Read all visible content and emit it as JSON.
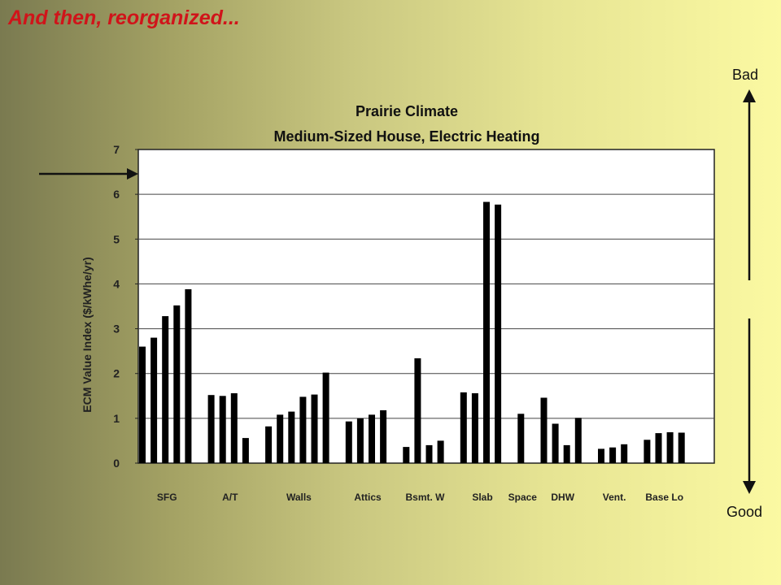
{
  "slide": {
    "title": "And then, reorganized...",
    "bad_label": "Bad",
    "good_label": "Good"
  },
  "colors": {
    "title": "#d0141a",
    "bars": "#000000",
    "plot_background": "#ffffff"
  },
  "chart_data": {
    "type": "bar",
    "title": "Prairie Climate",
    "subtitle": "Medium-Sized House, Electric Heating",
    "xlabel": "",
    "ylabel": "ECM Value Index ($/kWhe/yr)",
    "ylim": [
      0,
      7
    ],
    "yticks": [
      0,
      1,
      2,
      3,
      4,
      5,
      6,
      7
    ],
    "grid": true,
    "legend": "none",
    "categories": [
      "SFG",
      "A/T",
      "Walls",
      "Attics",
      "Bsmt. W",
      "Slab",
      "Space",
      "DHW",
      "Vent.",
      "Base Lo"
    ],
    "groups": [
      {
        "category": "SFG",
        "values": [
          2.6,
          2.8,
          3.28,
          3.52,
          3.88
        ]
      },
      {
        "category": "A/T",
        "values": [
          1.52,
          1.5,
          1.56,
          0.56
        ]
      },
      {
        "category": "Walls",
        "values": [
          0.82,
          1.08,
          1.15,
          1.48,
          1.53,
          2.02
        ]
      },
      {
        "category": "Attics",
        "values": [
          0.93,
          1.0,
          1.08,
          1.18
        ]
      },
      {
        "category": "Bsmt. W",
        "values": [
          0.36,
          2.34,
          0.4,
          0.5
        ]
      },
      {
        "category": "Slab",
        "values": [
          1.58,
          1.56,
          5.83,
          5.77
        ]
      },
      {
        "category": "Space",
        "values": [
          1.1
        ]
      },
      {
        "category": "DHW",
        "values": [
          1.46,
          0.88,
          0.4,
          1.01
        ]
      },
      {
        "category": "Vent.",
        "values": [
          0.32,
          0.35,
          0.42
        ]
      },
      {
        "category": "Base Lo",
        "values": [
          0.52,
          0.67,
          0.69,
          0.68
        ]
      }
    ]
  }
}
